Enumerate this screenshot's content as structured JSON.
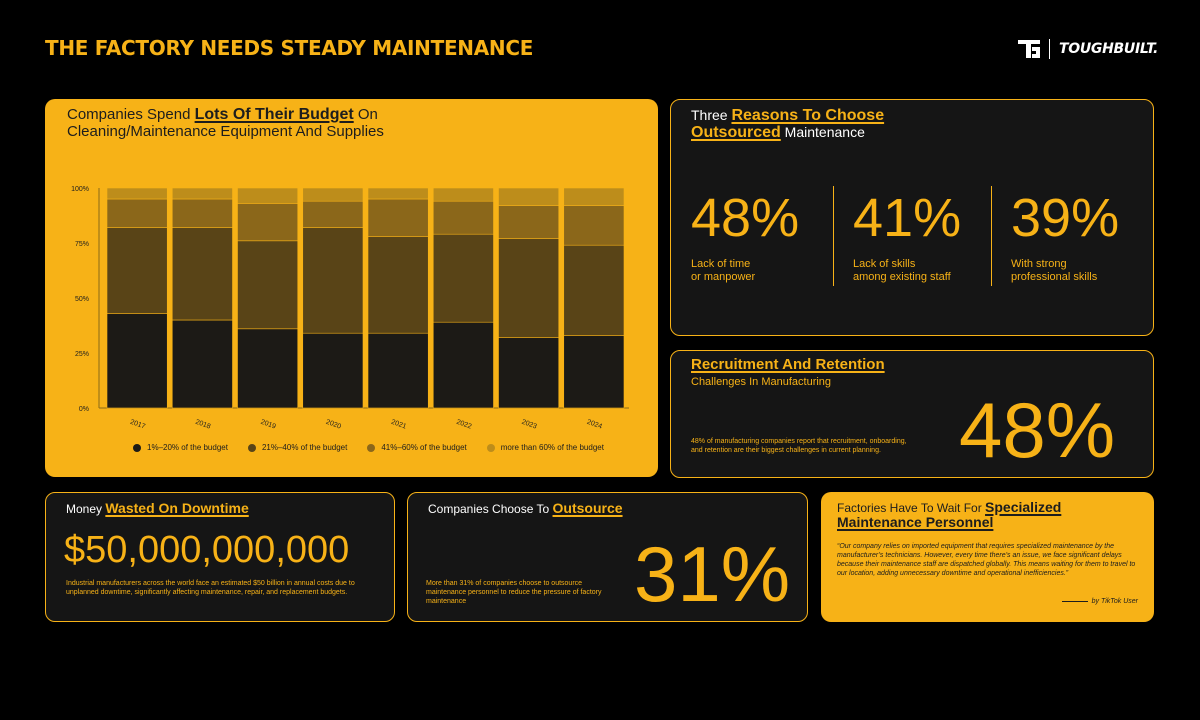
{
  "header": {
    "title": "THE FACTORY NEEDS STEADY MAINTENANCE",
    "brand": "TOUGHBUILT."
  },
  "chart_card": {
    "title_pre": "Companies Spend ",
    "title_highlight": "Lots Of Their Budget",
    "title_post": " On",
    "title_line2": "Cleaning/Maintenance Equipment And Supplies"
  },
  "chart_data": {
    "type": "bar",
    "stacked": true,
    "categories": [
      "2017",
      "2018",
      "2019",
      "2020",
      "2021",
      "2022",
      "2023",
      "2024"
    ],
    "series": [
      {
        "name": "1%–20% of the budget",
        "values": [
          43,
          40,
          36,
          34,
          34,
          39,
          32,
          33
        ],
        "color": "#1c1a16"
      },
      {
        "name": "21%–40% of the budget",
        "values": [
          39,
          42,
          40,
          48,
          44,
          40,
          45,
          41
        ],
        "color": "#594417"
      },
      {
        "name": "41%–60% of the budget",
        "values": [
          13,
          13,
          17,
          12,
          17,
          15,
          15,
          18
        ],
        "color": "#8b671a"
      },
      {
        "name": "more than 60% of the budget",
        "values": [
          5,
          5,
          7,
          6,
          5,
          6,
          8,
          8
        ],
        "color": "#bd8d1b"
      }
    ],
    "yticks": [
      "0%",
      "25%",
      "50%",
      "75%",
      "100%"
    ],
    "ylim": [
      0,
      100
    ],
    "legend_position": "bottom"
  },
  "reasons_card": {
    "title_pre": "Three ",
    "title_highlight_1": "Reasons To Choose",
    "title_highlight_2": "Outsourced",
    "title_post": " Maintenance",
    "items": [
      {
        "value": "48%",
        "line1": "Lack of time",
        "line2": "or manpower"
      },
      {
        "value": "41%",
        "line1": "Lack of skills",
        "line2": "among existing staff"
      },
      {
        "value": "39%",
        "line1": "With strong",
        "line2": "professional skills"
      }
    ]
  },
  "recruit_card": {
    "title": "Recruitment And Retention",
    "subtitle": "Challenges In Manufacturing",
    "note": "48% of manufacturing companies report that recruitment, onboarding, and retention are their biggest challenges in current planning.",
    "value": "48%"
  },
  "downtime_card": {
    "title_pre": "Money ",
    "title_highlight": "Wasted On Downtime",
    "value": "$50,000,000,000",
    "note": "Industrial manufacturers across the world face an estimated $50 billion in annual costs due to unplanned downtime, significantly affecting maintenance, repair, and replacement budgets."
  },
  "outsource_card": {
    "title_pre": "Companies Choose To ",
    "title_highlight": "Outsource",
    "note": "More than 31% of companies choose to outsource maintenance personnel to reduce the pressure of factory maintenance",
    "value": "31%"
  },
  "wait_card": {
    "title_pre": "Factories Have To Wait For ",
    "title_highlight_1": "Specialized",
    "title_highlight_2": "Maintenance Personnel",
    "quote": "“Our company relies on imported equipment that requires specialized maintenance by the manufacturer’s technicians. However, every time there’s an issue, we face significant delays because their maintenance staff are dispatched globally. This means waiting for them to travel to our location, adding unnecessary downtime and operational inefficiencies.”",
    "attribution": "by TikTok User"
  }
}
